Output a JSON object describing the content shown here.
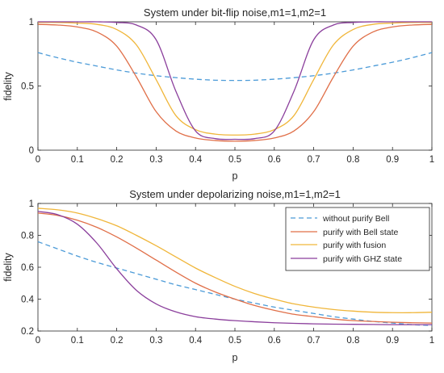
{
  "chart_data": [
    {
      "type": "line",
      "title": "System under bit-flip noise,m1=1,m2=1",
      "xlabel": "p",
      "ylabel": "fidelity",
      "xlim": [
        0,
        1
      ],
      "ylim": [
        0,
        1
      ],
      "xticks": [
        "0",
        "0.1",
        "0.2",
        "0.3",
        "0.4",
        "0.5",
        "0.6",
        "0.7",
        "0.8",
        "0.9",
        "1"
      ],
      "yticks": [
        "0",
        "0.5",
        "1"
      ],
      "grid": false,
      "x": [
        0,
        0.05,
        0.1,
        0.15,
        0.2,
        0.25,
        0.3,
        0.35,
        0.4,
        0.45,
        0.5,
        0.55,
        0.6,
        0.65,
        0.7,
        0.75,
        0.8,
        0.85,
        0.9,
        0.95,
        1
      ],
      "series": [
        {
          "key": "without_bell",
          "color": "#4c9bd8",
          "dash": true,
          "values": [
            0.76,
            0.72,
            0.685,
            0.655,
            0.625,
            0.6,
            0.58,
            0.565,
            0.553,
            0.545,
            0.543,
            0.545,
            0.553,
            0.565,
            0.58,
            0.6,
            0.625,
            0.655,
            0.685,
            0.72,
            0.76
          ]
        },
        {
          "key": "bell_state",
          "color": "#e06f48",
          "dash": false,
          "values": [
            0.98,
            0.975,
            0.96,
            0.92,
            0.81,
            0.57,
            0.3,
            0.15,
            0.095,
            0.075,
            0.07,
            0.075,
            0.095,
            0.15,
            0.3,
            0.57,
            0.81,
            0.92,
            0.96,
            0.975,
            0.98
          ]
        },
        {
          "key": "fusion",
          "color": "#f0b63a",
          "dash": false,
          "values": [
            0.995,
            0.995,
            0.99,
            0.98,
            0.94,
            0.82,
            0.55,
            0.27,
            0.16,
            0.125,
            0.118,
            0.125,
            0.16,
            0.27,
            0.55,
            0.82,
            0.94,
            0.98,
            0.99,
            0.995,
            0.995
          ]
        },
        {
          "key": "ghz_state",
          "color": "#8b3f9c",
          "dash": false,
          "values": [
            1.0,
            1.0,
            1.0,
            1.0,
            0.995,
            0.975,
            0.86,
            0.46,
            0.15,
            0.09,
            0.085,
            0.09,
            0.15,
            0.46,
            0.86,
            0.975,
            0.995,
            1.0,
            1.0,
            1.0,
            1.0
          ]
        }
      ]
    },
    {
      "type": "line",
      "title": "System under depolarizing noise,m1=1,m2=1",
      "xlabel": "p",
      "ylabel": "fidelity",
      "xlim": [
        0,
        1
      ],
      "ylim": [
        0.2,
        1
      ],
      "xticks": [
        "0",
        "0.1",
        "0.2",
        "0.3",
        "0.4",
        "0.5",
        "0.6",
        "0.7",
        "0.8",
        "0.9",
        "1"
      ],
      "yticks": [
        "0.2",
        "0.4",
        "0.6",
        "0.8",
        "1"
      ],
      "grid": false,
      "legend_position": "top-right",
      "x": [
        0,
        0.05,
        0.1,
        0.15,
        0.2,
        0.25,
        0.3,
        0.35,
        0.4,
        0.45,
        0.5,
        0.55,
        0.6,
        0.65,
        0.7,
        0.75,
        0.8,
        0.85,
        0.9,
        0.95,
        1
      ],
      "series": [
        {
          "key": "without_bell",
          "name": "without purify Bell",
          "color": "#4c9bd8",
          "dash": true,
          "values": [
            0.76,
            0.715,
            0.67,
            0.63,
            0.595,
            0.56,
            0.525,
            0.49,
            0.46,
            0.43,
            0.4,
            0.375,
            0.35,
            0.33,
            0.31,
            0.29,
            0.275,
            0.26,
            0.25,
            0.24,
            0.235
          ]
        },
        {
          "key": "bell_state",
          "name": "purify with Bell state",
          "color": "#e06f48",
          "dash": false,
          "values": [
            0.94,
            0.925,
            0.895,
            0.85,
            0.79,
            0.72,
            0.645,
            0.57,
            0.5,
            0.445,
            0.4,
            0.36,
            0.33,
            0.305,
            0.29,
            0.275,
            0.265,
            0.26,
            0.255,
            0.252,
            0.25
          ]
        },
        {
          "key": "fusion",
          "name": "purify with fusion",
          "color": "#f0b63a",
          "dash": false,
          "values": [
            0.97,
            0.96,
            0.94,
            0.905,
            0.86,
            0.8,
            0.735,
            0.665,
            0.595,
            0.535,
            0.48,
            0.435,
            0.4,
            0.37,
            0.35,
            0.335,
            0.325,
            0.318,
            0.315,
            0.315,
            0.318
          ]
        },
        {
          "key": "ghz_state",
          "name": "purify with GHZ state",
          "color": "#8b3f9c",
          "dash": false,
          "values": [
            0.95,
            0.93,
            0.87,
            0.75,
            0.59,
            0.455,
            0.37,
            0.32,
            0.29,
            0.275,
            0.265,
            0.258,
            0.252,
            0.248,
            0.245,
            0.243,
            0.242,
            0.241,
            0.24,
            0.24,
            0.24
          ]
        }
      ]
    }
  ]
}
